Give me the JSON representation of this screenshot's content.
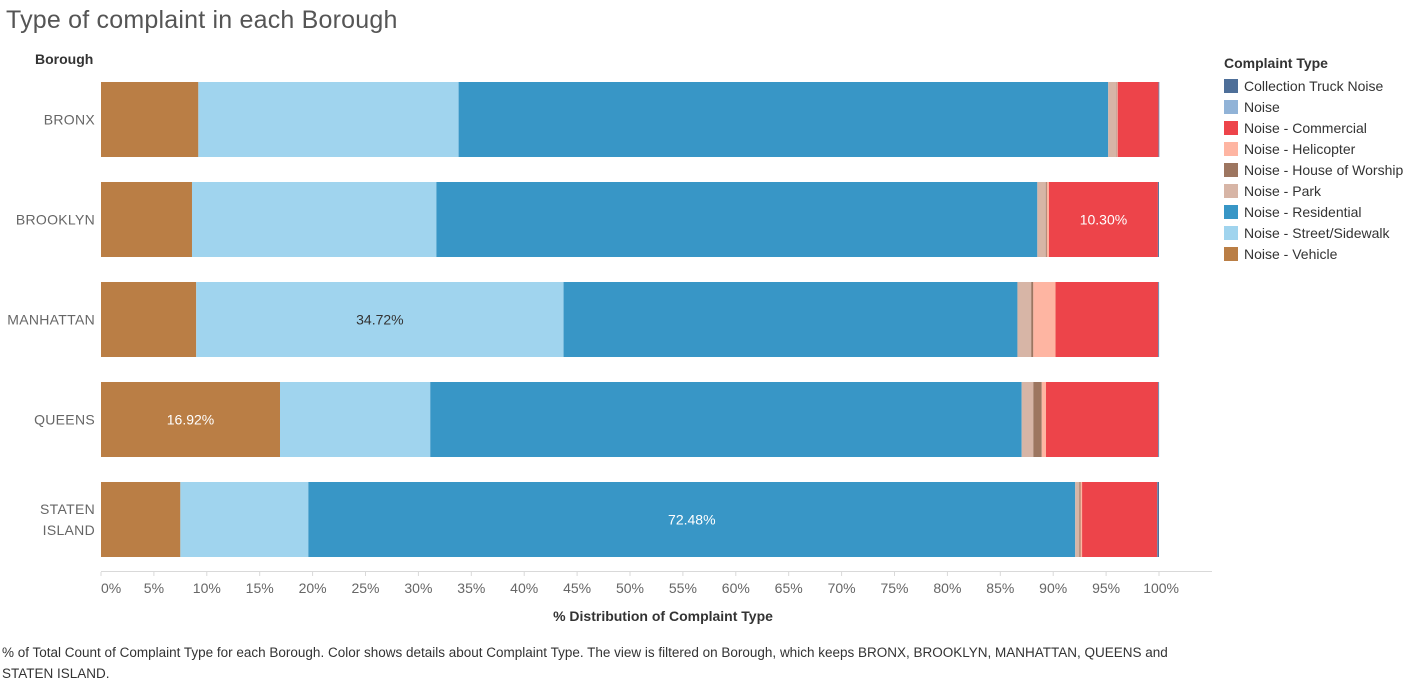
{
  "title": "Type of complaint in each Borough",
  "legend": {
    "title": "Complaint Type",
    "items": [
      {
        "label": "Collection Truck Noise",
        "color": "#4e6f99"
      },
      {
        "label": "Noise",
        "color": "#91b3d7"
      },
      {
        "label": "Noise - Commercial",
        "color": "#ed444a"
      },
      {
        "label": "Noise - Helicopter",
        "color": "#feb5a2"
      },
      {
        "label": "Noise - House of Worship",
        "color": "#9d7660"
      },
      {
        "label": "Noise - Park",
        "color": "#d7b5a6"
      },
      {
        "label": "Noise - Residential",
        "color": "#3896c6"
      },
      {
        "label": "Noise - Street/Sidewalk",
        "color": "#a0d4ee"
      },
      {
        "label": "Noise - Vehicle",
        "color": "#ba7e45"
      }
    ]
  },
  "footnote": "% of Total Count of Complaint Type for each Borough.  Color shows details about Complaint Type. The view is filtered on Borough, which keeps BRONX, BROOKLYN, MANHATTAN, QUEENS and STATEN ISLAND.",
  "chart_data": {
    "type": "bar",
    "orientation": "horizontal",
    "stacked": true,
    "title": "Type of complaint in each Borough",
    "xlabel": "% Distribution of Complaint Type",
    "ylabel": "Borough",
    "xlim": [
      0,
      100
    ],
    "xticks": [
      "0%",
      "5%",
      "10%",
      "15%",
      "20%",
      "25%",
      "30%",
      "35%",
      "40%",
      "45%",
      "50%",
      "55%",
      "60%",
      "65%",
      "70%",
      "75%",
      "80%",
      "85%",
      "90%",
      "95%",
      "100%"
    ],
    "categories": [
      [
        "BRONX"
      ],
      [
        "BROOKLYN"
      ],
      [
        "MANHATTAN"
      ],
      [
        "QUEENS"
      ],
      [
        "STATEN",
        "ISLAND"
      ]
    ],
    "legend_position": "right",
    "grid": false,
    "stack_order": [
      "Noise - Vehicle",
      "Noise - Street/Sidewalk",
      "Noise - Residential",
      "Noise - Park",
      "Noise - House of Worship",
      "Noise - Helicopter",
      "Noise - Commercial",
      "Noise",
      "Collection Truck Noise"
    ],
    "series": [
      {
        "name": "Noise - Vehicle",
        "color": "#ba7e45",
        "values": [
          9.2,
          8.6,
          9.0,
          16.92,
          7.5
        ]
      },
      {
        "name": "Noise - Street/Sidewalk",
        "color": "#a0d4ee",
        "values": [
          24.6,
          23.1,
          34.72,
          14.2,
          12.1
        ]
      },
      {
        "name": "Noise - Residential",
        "color": "#3896c6",
        "values": [
          61.4,
          56.8,
          42.9,
          55.9,
          72.48
        ]
      },
      {
        "name": "Noise - Park",
        "color": "#d7b5a6",
        "values": [
          0.8,
          0.8,
          1.3,
          1.1,
          0.4
        ]
      },
      {
        "name": "Noise - House of Worship",
        "color": "#9d7660",
        "values": [
          0.05,
          0.1,
          0.2,
          0.8,
          0.1
        ]
      },
      {
        "name": "Noise - Helicopter",
        "color": "#feb5a2",
        "values": [
          0.05,
          0.2,
          2.1,
          0.4,
          0.15
        ]
      },
      {
        "name": "Noise - Commercial",
        "color": "#ed444a",
        "values": [
          3.85,
          10.3,
          9.7,
          10.6,
          7.1
        ]
      },
      {
        "name": "Noise",
        "color": "#91b3d7",
        "values": [
          0.02,
          0.02,
          0.03,
          0.03,
          0.02
        ]
      },
      {
        "name": "Collection Truck Noise",
        "color": "#4e6f99",
        "values": [
          0.03,
          0.08,
          0.05,
          0.05,
          0.15
        ]
      }
    ],
    "data_labels": [
      {
        "borough_index": 1,
        "series": "Noise - Commercial",
        "text": "10.30%"
      },
      {
        "borough_index": 2,
        "series": "Noise - Street/Sidewalk",
        "text": "34.72%"
      },
      {
        "borough_index": 3,
        "series": "Noise - Vehicle",
        "text": "16.92%"
      },
      {
        "borough_index": 4,
        "series": "Noise - Residential",
        "text": "72.48%"
      }
    ]
  }
}
